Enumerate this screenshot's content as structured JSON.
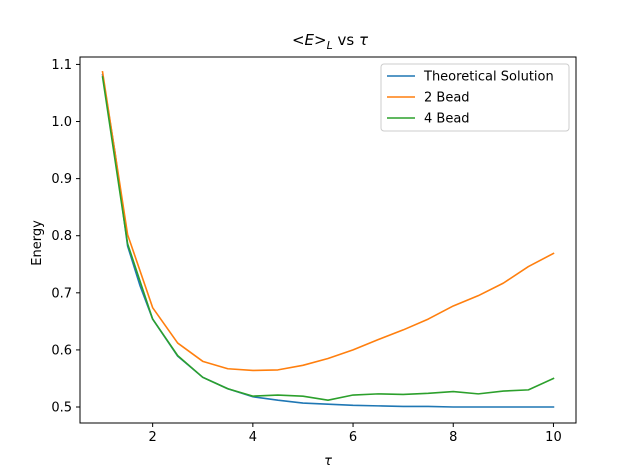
{
  "chart_data": {
    "type": "line",
    "title": "<E>L vs τ",
    "title_parts": {
      "lhs": "<",
      "var": "E",
      "rhs": ">",
      "sub": "L",
      "vs": " vs ",
      "tau": "τ"
    },
    "xlabel": "τ",
    "ylabel": "Energy",
    "xlim": [
      0.55,
      10.45
    ],
    "ylim": [
      0.472,
      1.113
    ],
    "xticks": [
      2,
      4,
      6,
      8,
      10
    ],
    "yticks": [
      0.5,
      0.6,
      0.7,
      0.8,
      0.9,
      1.0,
      1.1
    ],
    "ytick_labels": [
      "0.5",
      "0.6",
      "0.7",
      "0.8",
      "0.9",
      "1.0",
      "1.1"
    ],
    "grid": false,
    "legend_position": "top-right",
    "x": [
      1.0,
      1.5,
      2.0,
      2.5,
      3.0,
      3.5,
      4.0,
      4.5,
      5.0,
      5.5,
      6.0,
      6.5,
      7.0,
      7.5,
      8.0,
      8.5,
      9.0,
      9.5,
      10.0
    ],
    "series": [
      {
        "name": "Theoretical Solution",
        "color": "#1f77b4",
        "x": [
          1.0,
          1.25,
          1.5,
          1.75,
          2.0,
          2.5,
          3.0,
          3.5,
          4.0,
          4.5,
          5.0,
          5.5,
          6.0,
          6.5,
          7.0,
          7.5,
          8.0,
          8.5,
          9.0,
          9.5,
          10.0
        ],
        "values": [
          1.082,
          0.945,
          0.782,
          0.712,
          0.654,
          0.589,
          0.552,
          0.532,
          0.518,
          0.512,
          0.507,
          0.505,
          0.503,
          0.502,
          0.501,
          0.501,
          0.5,
          0.5,
          0.5,
          0.5,
          0.5
        ]
      },
      {
        "name": "2 Bead",
        "color": "#ff7f0e",
        "x": [
          1.0,
          1.5,
          2.0,
          2.5,
          3.0,
          3.5,
          4.0,
          4.5,
          5.0,
          5.5,
          6.0,
          6.5,
          7.0,
          7.5,
          8.0,
          8.5,
          9.0,
          9.5,
          10.0
        ],
        "values": [
          1.087,
          0.802,
          0.674,
          0.612,
          0.58,
          0.567,
          0.564,
          0.565,
          0.573,
          0.585,
          0.6,
          0.618,
          0.635,
          0.654,
          0.677,
          0.695,
          0.717,
          0.746,
          0.769
        ]
      },
      {
        "name": "4 Bead",
        "color": "#2ca02c",
        "x": [
          1.0,
          1.5,
          2.0,
          2.5,
          3.0,
          3.5,
          4.0,
          4.5,
          5.0,
          5.5,
          6.0,
          6.5,
          7.0,
          7.5,
          8.0,
          8.5,
          9.0,
          9.5,
          10.0
        ],
        "values": [
          1.078,
          0.786,
          0.654,
          0.59,
          0.552,
          0.532,
          0.519,
          0.521,
          0.519,
          0.512,
          0.521,
          0.523,
          0.522,
          0.524,
          0.527,
          0.523,
          0.528,
          0.53,
          0.55
        ]
      }
    ]
  }
}
